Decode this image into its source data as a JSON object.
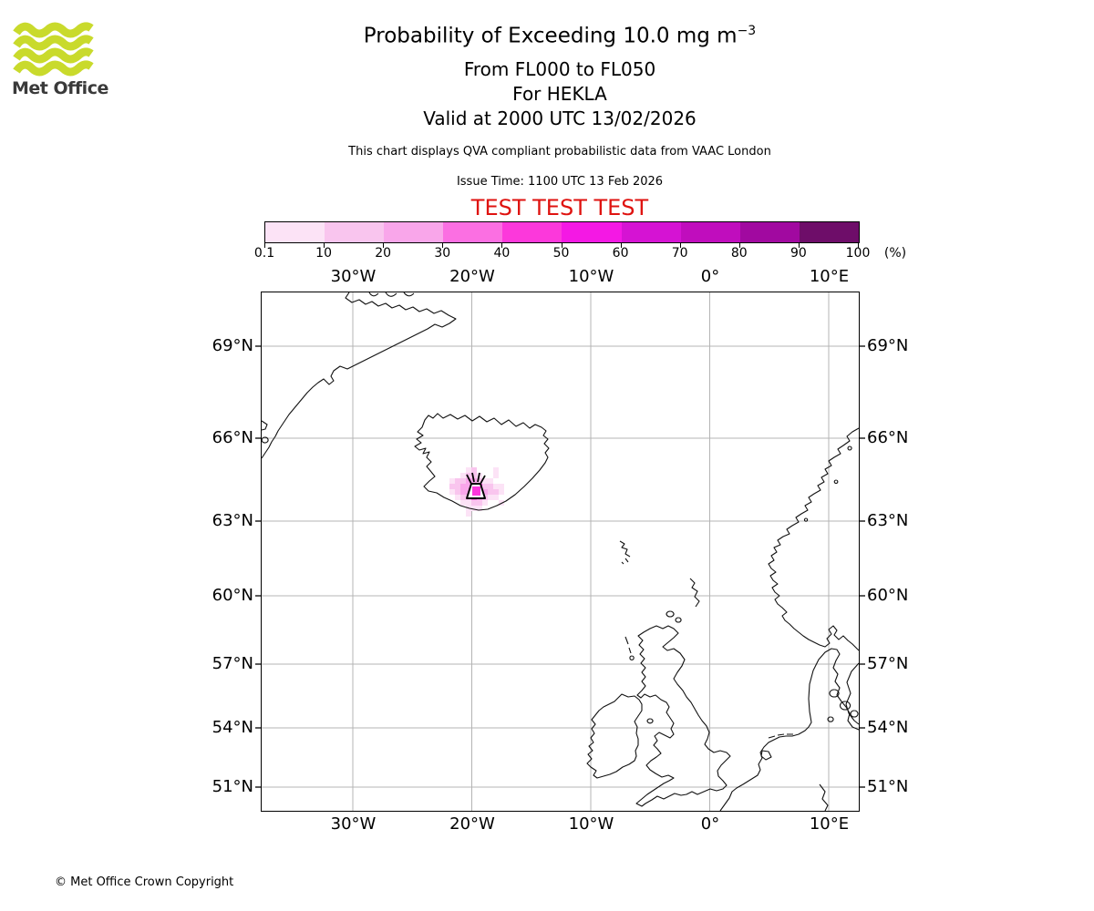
{
  "brand": {
    "name": "Met Office",
    "wave_color": "#c9da2c"
  },
  "header": {
    "title_main": "Probability of Exceeding 10.0 mg m",
    "title_sup": "−3",
    "flight_levels": "From FL000 to FL050",
    "volcano_line": "For HEKLA",
    "valid_line": "Valid at 2000 UTC 13/02/2026",
    "note": "This chart displays QVA compliant probabilistic data from VAAC London",
    "issue_line": "Issue Time: 1100 UTC 13 Feb 2026",
    "test_banner": "TEST TEST TEST",
    "test_color": "#df1310"
  },
  "colorbar": {
    "tick_labels": [
      "0.1",
      "10",
      "20",
      "30",
      "40",
      "50",
      "60",
      "70",
      "80",
      "90",
      "100"
    ],
    "unit": "(%)",
    "colors": [
      "#fce3f6",
      "#f9c5ee",
      "#f9a6ea",
      "#fb6fe2",
      "#fc38db",
      "#f418e4",
      "#d513d3",
      "#c00dbd",
      "#a109a0",
      "#6e0d69"
    ]
  },
  "map": {
    "lon_labels": [
      "30°W",
      "20°W",
      "10°W",
      "0°",
      "10°E"
    ],
    "lat_labels": [
      "69°N",
      "66°N",
      "63°N",
      "60°N",
      "57°N",
      "54°N",
      "51°N"
    ]
  },
  "footer": {
    "copyright": "© Met Office Crown Copyright"
  },
  "chart_data": {
    "type": "heatmap",
    "title": "Probability of Exceeding 10.0 mg m−3",
    "threshold": "10.0 mg m−3",
    "layer": "From FL000 to FL050",
    "volcano": "HEKLA",
    "volcano_lon_lat": [
      -19.7,
      64.0
    ],
    "valid_time": "2000 UTC 13/02/2026",
    "issue_time": "1100 UTC 13 Feb 2026",
    "source": "VAAC London",
    "status": "TEST",
    "legend_percent_edges": [
      0.1,
      10,
      20,
      30,
      40,
      50,
      60,
      70,
      80,
      90,
      100
    ],
    "legend_colors": [
      "#fce3f6",
      "#f9c5ee",
      "#f9a6ea",
      "#fb6fe2",
      "#fc38db",
      "#f418e4",
      "#d513d3",
      "#c00dbd",
      "#a109a0",
      "#6e0d69"
    ],
    "map_extent": {
      "lon_min": -37.7,
      "lon_max": 12.5,
      "lat_min": 49.8,
      "lat_max": 70.7
    },
    "lon_gridlines_deg": [
      -30,
      -20,
      -10,
      0,
      10
    ],
    "lat_gridlines_deg": [
      69,
      66,
      63,
      60,
      57,
      54,
      51
    ],
    "grid_note": "probability cells (col,row,bucket) on ~0.45 deg grid over southern Iceland; origin approx 22.2W 64.7N; bucket 1=0.1-10%, 2=10-20%, 3=20-30%, 4=30-40%, 5=40-50%",
    "cells": [
      [
        3,
        0,
        1
      ],
      [
        4,
        0,
        2
      ],
      [
        8,
        0,
        1
      ],
      [
        2,
        1,
        1
      ],
      [
        3,
        1,
        2
      ],
      [
        4,
        1,
        2
      ],
      [
        5,
        1,
        1
      ],
      [
        8,
        1,
        1
      ],
      [
        0,
        2,
        1
      ],
      [
        1,
        2,
        2
      ],
      [
        2,
        2,
        2
      ],
      [
        3,
        2,
        3
      ],
      [
        4,
        2,
        3
      ],
      [
        5,
        2,
        2
      ],
      [
        6,
        2,
        1
      ],
      [
        7,
        2,
        1
      ],
      [
        0,
        3,
        2
      ],
      [
        1,
        3,
        2
      ],
      [
        2,
        3,
        3
      ],
      [
        3,
        3,
        3
      ],
      [
        4,
        3,
        5
      ],
      [
        5,
        3,
        5
      ],
      [
        6,
        3,
        2
      ],
      [
        7,
        3,
        2
      ],
      [
        8,
        3,
        1
      ],
      [
        9,
        3,
        1
      ],
      [
        0,
        4,
        1
      ],
      [
        1,
        4,
        2
      ],
      [
        2,
        4,
        3
      ],
      [
        3,
        4,
        3
      ],
      [
        4,
        4,
        5
      ],
      [
        5,
        4,
        5
      ],
      [
        6,
        4,
        3
      ],
      [
        7,
        4,
        2
      ],
      [
        8,
        4,
        2
      ],
      [
        9,
        4,
        1
      ],
      [
        1,
        5,
        1
      ],
      [
        2,
        5,
        2
      ],
      [
        3,
        5,
        2
      ],
      [
        4,
        5,
        4
      ],
      [
        5,
        5,
        3
      ],
      [
        6,
        5,
        2
      ],
      [
        7,
        5,
        1
      ],
      [
        8,
        5,
        1
      ],
      [
        2,
        6,
        1
      ],
      [
        3,
        6,
        1
      ],
      [
        4,
        6,
        2
      ],
      [
        5,
        6,
        2
      ],
      [
        6,
        6,
        1
      ],
      [
        9,
        6,
        1
      ],
      [
        3,
        7,
        1
      ],
      [
        4,
        7,
        1
      ],
      [
        5,
        7,
        1
      ],
      [
        3,
        8,
        1
      ]
    ]
  }
}
